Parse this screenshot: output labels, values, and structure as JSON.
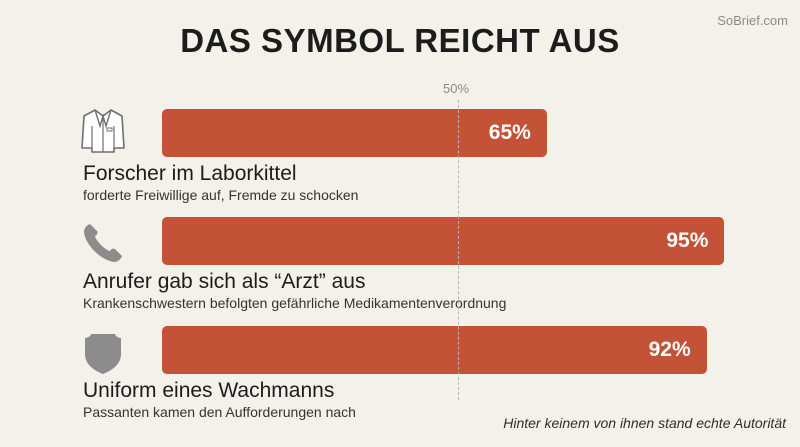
{
  "header": {
    "title": "DAS SYMBOL REICHT AUS",
    "brand": "SoBrief.com"
  },
  "reference": {
    "label": "50%",
    "value": 50
  },
  "footnote": "Hinter keinem von ihnen stand echte Autorität",
  "colors": {
    "bar": "#c45236",
    "background": "#f4f1ea",
    "icon": "#8c8c8c"
  },
  "chart_data": {
    "type": "bar",
    "orientation": "horizontal",
    "categories": [
      "Forscher im Laborkittel",
      "Anrufer gab sich als “Arzt” aus",
      "Uniform eines Wachmanns"
    ],
    "values": [
      65,
      95,
      92
    ],
    "value_labels": [
      "65%",
      "95%",
      "92%"
    ],
    "subtitles": [
      "forderte Freiwillige auf, Fremde zu schocken",
      "Krankenschwestern befolgten gefährliche Medikamentenverordnung",
      "Passanten kamen den Aufforderungen nach"
    ],
    "icons": [
      "lab-coat-icon",
      "phone-icon",
      "shield-badge-icon"
    ],
    "title": "DAS SYMBOL REICHT AUS",
    "xlabel": "",
    "ylabel": "",
    "xlim": [
      0,
      100
    ],
    "grid": false
  }
}
